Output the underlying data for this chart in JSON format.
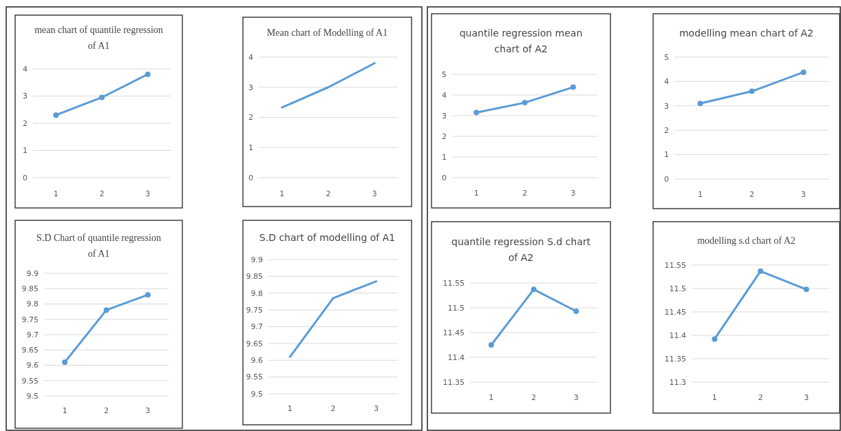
{
  "chart_data": [
    {
      "type": "line",
      "title": "mean chart of quantile regression of A1",
      "categories": [
        "1",
        "2",
        "3"
      ],
      "series": [
        {
          "color": "#5b9bd5",
          "values": [
            2.3,
            2.95,
            3.8
          ]
        }
      ],
      "ylim": [
        0,
        4
      ],
      "yticks": [
        0,
        1,
        2,
        3,
        4
      ],
      "grid": "y",
      "marker": "circle",
      "line_style": "solid"
    },
    {
      "type": "line",
      "title": "Mean chart of Modelling of A1",
      "categories": [
        "1",
        "2",
        "3"
      ],
      "series": [
        {
          "color": "#5b9bd5",
          "values": [
            2.33,
            3.0,
            3.8
          ]
        }
      ],
      "ylim": [
        0,
        4
      ],
      "yticks": [
        0,
        1,
        2,
        3,
        4
      ],
      "grid": "y",
      "marker": "none",
      "line_style": "solid"
    },
    {
      "type": "line",
      "title": "S.D Chart of quantile regression of A1",
      "categories": [
        "1",
        "2",
        "3"
      ],
      "series": [
        {
          "color": "#5b9bd5",
          "values": [
            9.61,
            9.78,
            9.83
          ]
        }
      ],
      "ylim": [
        9.5,
        9.9
      ],
      "yticks": [
        9.5,
        9.55,
        9.6,
        9.65,
        9.7,
        9.75,
        9.8,
        9.85,
        9.9
      ],
      "grid": "y",
      "marker": "circle",
      "line_style": "solid"
    },
    {
      "type": "line",
      "title": "S.D chart of modelling of A1",
      "categories": [
        "1",
        "2",
        "3"
      ],
      "series": [
        {
          "color": "#5b9bd5",
          "values": [
            9.61,
            9.785,
            9.835
          ]
        }
      ],
      "ylim": [
        9.5,
        9.9
      ],
      "yticks": [
        9.5,
        9.55,
        9.6,
        9.65,
        9.7,
        9.75,
        9.8,
        9.85,
        9.9
      ],
      "grid": "y",
      "marker": "none",
      "line_style": "solid"
    },
    {
      "type": "line",
      "title": "quantile regression mean chart of A2",
      "categories": [
        "1",
        "2",
        "3"
      ],
      "series": [
        {
          "color": "#5b9bd5",
          "values": [
            3.15,
            3.63,
            4.38
          ]
        }
      ],
      "ylim": [
        0,
        5
      ],
      "yticks": [
        0,
        1,
        2,
        3,
        4,
        5
      ],
      "grid": "y",
      "marker": "circle",
      "line_style": "solid"
    },
    {
      "type": "line",
      "title": "modelling mean chart of A2",
      "categories": [
        "1",
        "2",
        "3"
      ],
      "series": [
        {
          "color": "#5b9bd5",
          "values": [
            3.1,
            3.6,
            4.38
          ]
        }
      ],
      "ylim": [
        0,
        5
      ],
      "yticks": [
        0,
        1,
        2,
        3,
        4,
        5
      ],
      "grid": "y",
      "marker": "circle",
      "line_style": "solid"
    },
    {
      "type": "line",
      "title": "quantile regression S.d chart of A2",
      "categories": [
        "1",
        "2",
        "3"
      ],
      "series": [
        {
          "color": "#5b9bd5",
          "values": [
            11.425,
            11.537,
            11.493
          ]
        }
      ],
      "ylim": [
        11.35,
        11.55
      ],
      "yticks": [
        11.35,
        11.4,
        11.45,
        11.5,
        11.55
      ],
      "grid": "y",
      "marker": "circle",
      "line_style": "solid"
    },
    {
      "type": "line",
      "title": "modelling s.d chart of A2",
      "categories": [
        "1",
        "2",
        "3"
      ],
      "series": [
        {
          "color": "#5b9bd5",
          "values": [
            11.392,
            11.537,
            11.498
          ]
        }
      ],
      "ylim": [
        11.3,
        11.55
      ],
      "yticks": [
        11.3,
        11.35,
        11.4,
        11.45,
        11.5,
        11.55
      ],
      "grid": "y",
      "marker": "circle",
      "line_style": "solid"
    }
  ]
}
